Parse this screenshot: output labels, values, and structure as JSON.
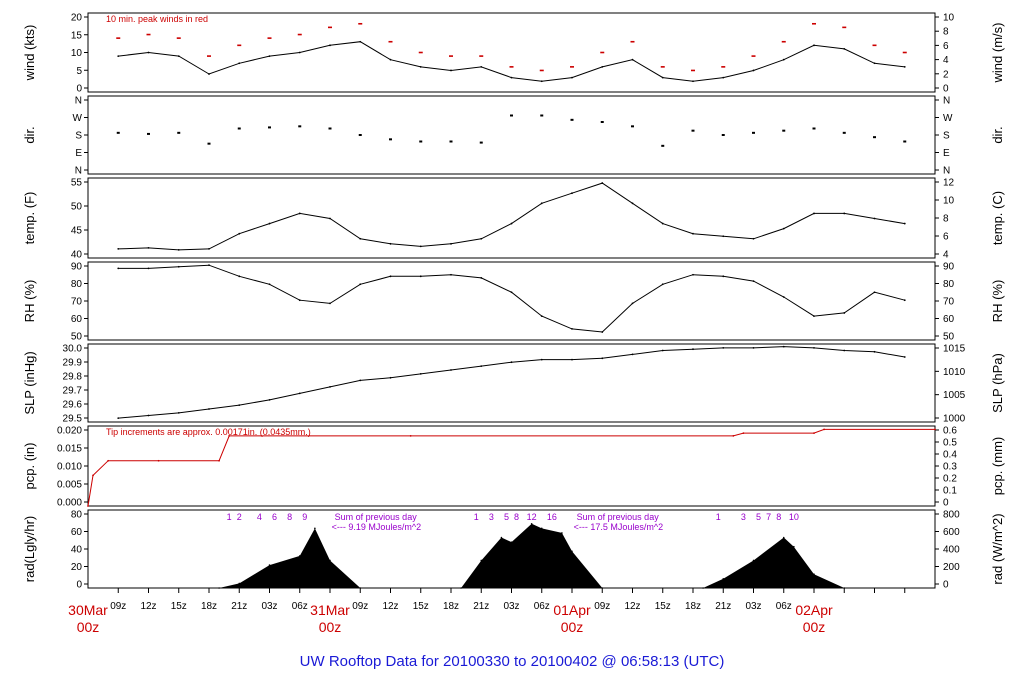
{
  "title": "UW Rooftop Data for 20100330  to  20100402 @ 06:58:13  (UTC)",
  "hour_ticks": [
    "09z",
    "12z",
    "15z",
    "18z",
    "21z",
    "03z",
    "06z",
    "09z",
    "12z",
    "15z",
    "18z",
    "21z",
    "03z",
    "06z",
    "09z",
    "12z",
    "15z",
    "18z",
    "21z",
    "03z",
    "06z"
  ],
  "day_labels": [
    {
      "top": "30Mar",
      "bottom": "00z"
    },
    {
      "top": "31Mar",
      "bottom": "00z"
    },
    {
      "top": "01Apr",
      "bottom": "00z"
    },
    {
      "top": "02Apr",
      "bottom": "00z"
    }
  ],
  "colors": {
    "data": "#000000",
    "peak": "#cc0000",
    "precip": "#cc0000",
    "notes": "#9900cc",
    "title": "#1a1ad6",
    "day_labels": "#cc0000"
  },
  "chart_data": [
    {
      "type": "line",
      "ylabel_left": "wind (kts)",
      "ylabel_right": "wind (m/s)",
      "left_ticks": [
        "0",
        "5",
        "10",
        "15",
        "20"
      ],
      "right_ticks": [
        "0",
        "2",
        "4",
        "6",
        "8",
        "10"
      ],
      "ylim": [
        0,
        22
      ],
      "annotation": "10 min. peak winds in red",
      "x": [
        3,
        6,
        9,
        12,
        15,
        18,
        21,
        24,
        27,
        30,
        33,
        36,
        39,
        42,
        45,
        48,
        51,
        54,
        57,
        60,
        63,
        66,
        69,
        72,
        75,
        78,
        81
      ],
      "y": [
        10,
        11,
        10,
        5,
        8,
        10,
        11,
        13,
        14,
        9,
        7,
        6,
        7,
        4,
        3,
        4,
        7,
        9,
        4,
        3,
        4,
        6,
        9,
        13,
        12,
        8,
        7
      ],
      "peak_y": [
        15,
        16,
        15,
        10,
        13,
        15,
        16,
        18,
        19,
        14,
        11,
        10,
        10,
        7,
        6,
        7,
        11,
        14,
        7,
        6,
        7,
        10,
        14,
        19,
        18,
        13,
        11
      ]
    },
    {
      "type": "scatter",
      "ylabel_left": "dir.",
      "ylabel_right": "dir.",
      "left_ticks": [
        "N",
        "E",
        "S",
        "W",
        "N"
      ],
      "right_ticks": [
        "N",
        "E",
        "S",
        "W",
        "N"
      ],
      "ylim": [
        0,
        360
      ],
      "x": [
        3,
        6,
        9,
        12,
        15,
        18,
        21,
        24,
        27,
        30,
        33,
        36,
        39,
        42,
        45,
        48,
        51,
        54,
        57,
        60,
        63,
        66,
        69,
        72,
        75,
        78,
        81
      ],
      "y": [
        190,
        185,
        190,
        140,
        210,
        215,
        220,
        210,
        180,
        160,
        150,
        150,
        145,
        270,
        270,
        250,
        240,
        220,
        130,
        200,
        180,
        190,
        200,
        210,
        190,
        170,
        150
      ]
    },
    {
      "type": "line",
      "ylabel_left": "temp. (F)",
      "ylabel_right": "temp. (C)",
      "left_ticks": [
        "40",
        "45",
        "50",
        "55"
      ],
      "right_ticks": [
        "4",
        "6",
        "8",
        "10",
        "12"
      ],
      "ylim": [
        39.2,
        55
      ],
      "x": [
        3,
        6,
        9,
        12,
        15,
        18,
        21,
        24,
        27,
        30,
        33,
        36,
        39,
        42,
        45,
        48,
        51,
        54,
        57,
        60,
        63,
        66,
        69,
        72,
        75,
        78,
        81
      ],
      "y": [
        41,
        41.2,
        40.8,
        41,
        44,
        46,
        48,
        47,
        43,
        42,
        41.5,
        42,
        43,
        46,
        50,
        52,
        54,
        50,
        46,
        44,
        43.5,
        43,
        45,
        48,
        48,
        47,
        46
      ]
    },
    {
      "type": "line",
      "ylabel_left": "RH (%)",
      "ylabel_right": "RH (%)",
      "left_ticks": [
        "50",
        "60",
        "70",
        "80",
        "90"
      ],
      "right_ticks": [
        "50",
        "60",
        "70",
        "80",
        "90"
      ],
      "ylim": [
        45,
        94
      ],
      "x": [
        3,
        6,
        9,
        12,
        15,
        18,
        21,
        24,
        27,
        30,
        33,
        36,
        39,
        42,
        45,
        48,
        51,
        54,
        57,
        60,
        63,
        66,
        69,
        72,
        75,
        78,
        81
      ],
      "y": [
        90,
        90,
        91,
        92,
        85,
        80,
        70,
        68,
        80,
        85,
        85,
        86,
        84,
        75,
        60,
        52,
        50,
        68,
        80,
        86,
        85,
        82,
        72,
        60,
        62,
        75,
        70
      ]
    },
    {
      "type": "line",
      "ylabel_left": "SLP (inHg)",
      "ylabel_right": "SLP (hPa)",
      "left_ticks": [
        "29.5",
        "29.6",
        "29.7",
        "29.8",
        "29.9",
        "30.0"
      ],
      "right_ticks": [
        "1000",
        "1005",
        "1010",
        "1015"
      ],
      "ylim": [
        29.45,
        30.05
      ],
      "x": [
        3,
        6,
        9,
        12,
        15,
        18,
        21,
        24,
        27,
        30,
        33,
        36,
        39,
        42,
        45,
        48,
        51,
        54,
        57,
        60,
        63,
        66,
        69,
        72,
        75,
        78,
        81
      ],
      "y": [
        29.48,
        29.5,
        29.52,
        29.55,
        29.58,
        29.62,
        29.67,
        29.72,
        29.77,
        29.79,
        29.82,
        29.85,
        29.88,
        29.91,
        29.93,
        29.93,
        29.94,
        29.97,
        30.0,
        30.01,
        30.02,
        30.02,
        30.03,
        30.02,
        30.0,
        29.99,
        29.95
      ]
    },
    {
      "type": "line",
      "ylabel_left": "pcp. (in)",
      "ylabel_right": "pcp. (mm)",
      "left_ticks": [
        "0.000",
        "0.005",
        "0.010",
        "0.015",
        "0.020"
      ],
      "right_ticks": [
        "0",
        "0.1",
        "0.2",
        "0.3",
        "0.4",
        "0.5",
        "0.6"
      ],
      "ylim": [
        0,
        0.0235
      ],
      "annotation": "Tip increments are approx. 0.00171in. (0.0435mm.)",
      "x": [
        0,
        0.5,
        2,
        7,
        13,
        14,
        32,
        64,
        65,
        72,
        73,
        84
      ],
      "y": [
        0,
        0.009,
        0.0133,
        0.0133,
        0.0133,
        0.0206,
        0.0206,
        0.0206,
        0.0214,
        0.0214,
        0.0225,
        0.0225
      ]
    },
    {
      "type": "area",
      "ylabel_left": "rad(Lgly/hr)",
      "ylabel_right": "rad (W/m^2)",
      "left_ticks": [
        "0",
        "20",
        "40",
        "60",
        "80"
      ],
      "right_ticks": [
        "0",
        "200",
        "400",
        "600",
        "800"
      ],
      "ylim": [
        0,
        85
      ],
      "x": [
        13,
        15,
        18,
        21,
        22.5,
        24,
        27,
        37,
        39,
        41,
        42,
        44,
        45,
        47,
        48,
        51,
        61,
        63,
        66,
        69,
        70,
        72,
        75
      ],
      "y": [
        0,
        5,
        25,
        35,
        65,
        30,
        0,
        0,
        30,
        55,
        50,
        70,
        65,
        60,
        40,
        0,
        0,
        10,
        30,
        55,
        45,
        15,
        0
      ],
      "hour_marks": [
        {
          "x": 14,
          "label": "1"
        },
        {
          "x": 15,
          "label": "2"
        },
        {
          "x": 17,
          "label": "4"
        },
        {
          "x": 18.5,
          "label": "6"
        },
        {
          "x": 20,
          "label": "8"
        },
        {
          "x": 21.5,
          "label": "9"
        },
        {
          "x": 38.5,
          "label": "1"
        },
        {
          "x": 40,
          "label": "3"
        },
        {
          "x": 41.5,
          "label": "5"
        },
        {
          "x": 42.5,
          "label": "8"
        },
        {
          "x": 44,
          "label": "12"
        },
        {
          "x": 46,
          "label": "16"
        },
        {
          "x": 62.5,
          "label": "1"
        },
        {
          "x": 65,
          "label": "3"
        },
        {
          "x": 66.5,
          "label": "5"
        },
        {
          "x": 67.5,
          "label": "7"
        },
        {
          "x": 68.5,
          "label": "8"
        },
        {
          "x": 70,
          "label": "10"
        }
      ],
      "sum_notes": [
        {
          "line1": "Sum of previous day",
          "line2": "<--- 9.19 MJoules/m^2"
        },
        {
          "line1": "Sum of previous day",
          "line2": "<--- 17.5 MJoules/m^2"
        }
      ]
    }
  ]
}
